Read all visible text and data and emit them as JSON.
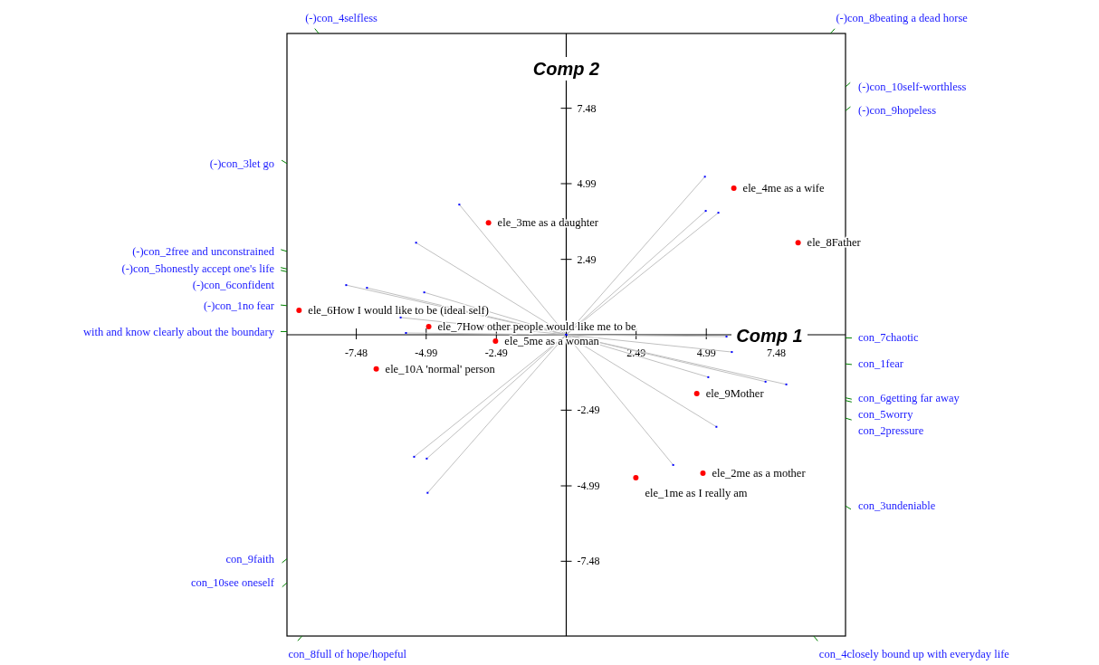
{
  "chart_data": {
    "type": "scatter",
    "xlabel": "Comp 1",
    "ylabel": "Comp 2",
    "xlim": [
      -9.95,
      9.95
    ],
    "ylim": [
      -9.95,
      9.95
    ],
    "xticks": [
      -7.48,
      -4.99,
      -2.49,
      2.49,
      4.99,
      7.48
    ],
    "yticks": [
      -7.48,
      -4.99,
      -2.49,
      2.49,
      4.99,
      7.48
    ],
    "series": [
      {
        "marker": "circle",
        "color": "#ff0000",
        "x": [
          2.48,
          4.87,
          -2.77,
          5.97,
          -2.52,
          -9.52,
          -4.9,
          8.26,
          4.65,
          -6.77
        ],
        "values": [
          -4.72,
          -4.57,
          3.7,
          4.84,
          -0.21,
          0.81,
          0.27,
          3.04,
          -1.94,
          -1.13
        ]
      },
      {
        "type": "line",
        "marker": "square",
        "color": "#c0c0c0",
        "x": [
          -5.9,
          0,
          5.9
        ],
        "values": [
          0.57,
          0,
          -0.57
        ]
      },
      {
        "type": "line",
        "marker": "square",
        "color": "#c0c0c0",
        "x": [
          -5.06,
          0,
          5.06
        ],
        "values": [
          1.4,
          0,
          -1.4
        ]
      },
      {
        "type": "line",
        "marker": "square",
        "color": "#c0c0c0",
        "x": [
          -5.35,
          0,
          5.35
        ],
        "values": [
          3.04,
          0,
          -3.04
        ]
      },
      {
        "type": "line",
        "marker": "square",
        "color": "#c0c0c0",
        "x": [
          -3.81,
          0,
          3.81
        ],
        "values": [
          4.3,
          0,
          -4.3
        ]
      },
      {
        "type": "line",
        "marker": "square",
        "color": "#c0c0c0",
        "x": [
          -7.1,
          0,
          7.1
        ],
        "values": [
          1.55,
          0,
          -1.55
        ]
      },
      {
        "type": "line",
        "marker": "square",
        "color": "#c0c0c0",
        "x": [
          -7.84,
          0,
          7.84
        ],
        "values": [
          1.64,
          0,
          -1.64
        ]
      },
      {
        "type": "line",
        "marker": "square",
        "color": "#c0c0c0",
        "x": [
          -5.71,
          0,
          5.71
        ],
        "values": [
          0.06,
          0,
          -0.06
        ]
      },
      {
        "type": "line",
        "marker": "square",
        "color": "#c0c0c0",
        "x": [
          -4.94,
          0,
          4.94
        ],
        "values": [
          -5.22,
          0,
          5.22
        ]
      },
      {
        "type": "line",
        "marker": "square",
        "color": "#c0c0c0",
        "x": [
          -5.42,
          0,
          5.42
        ],
        "values": [
          -4.03,
          0,
          4.03
        ]
      },
      {
        "type": "line",
        "marker": "square",
        "color": "#c0c0c0",
        "x": [
          -4.97,
          0,
          4.97
        ],
        "values": [
          -4.09,
          0,
          4.09
        ]
      }
    ],
    "annotations": [
      {
        "text": "ele_1me as I really am",
        "x": 2.48,
        "y": -4.72
      },
      {
        "text": "ele_2me as a mother",
        "x": 4.87,
        "y": -4.57
      },
      {
        "text": "ele_3me as a daughter",
        "x": -2.77,
        "y": 3.7
      },
      {
        "text": "ele_4me as a wife",
        "x": 5.97,
        "y": 4.84
      },
      {
        "text": "ele_5me as a woman",
        "x": -2.52,
        "y": -0.21
      },
      {
        "text": "ele_6How I would like to be (ideal self)",
        "x": -9.52,
        "y": 0.81
      },
      {
        "text": "ele_7How other people would like me to be",
        "x": -4.9,
        "y": 0.27
      },
      {
        "text": "ele_8Father",
        "x": 8.26,
        "y": 3.04
      },
      {
        "text": "ele_9Mother",
        "x": 4.65,
        "y": -1.94
      },
      {
        "text": "ele_10A 'normal' person",
        "x": -6.77,
        "y": -1.13
      },
      "(-)con_1no fear",
      "con_1fear",
      "(-)con_2free and unconstrained",
      "con_2pressure",
      "(-)con_3let go",
      "con_3undeniable",
      "(-)con_4selfless",
      "con_4closely bound up with everyday life",
      "(-)con_5honestly accept one's life",
      "con_5worry",
      "(-)con_6confident",
      "con_6getting far away",
      "with and know clearly about the boundary",
      "con_7chaotic",
      "con_8full of hope/hopeful",
      "(-)con_8beating a dead horse",
      "con_9faith",
      "(-)con_9hopeless",
      "con_10see oneself",
      "(-)con_10self-worthless"
    ]
  }
}
